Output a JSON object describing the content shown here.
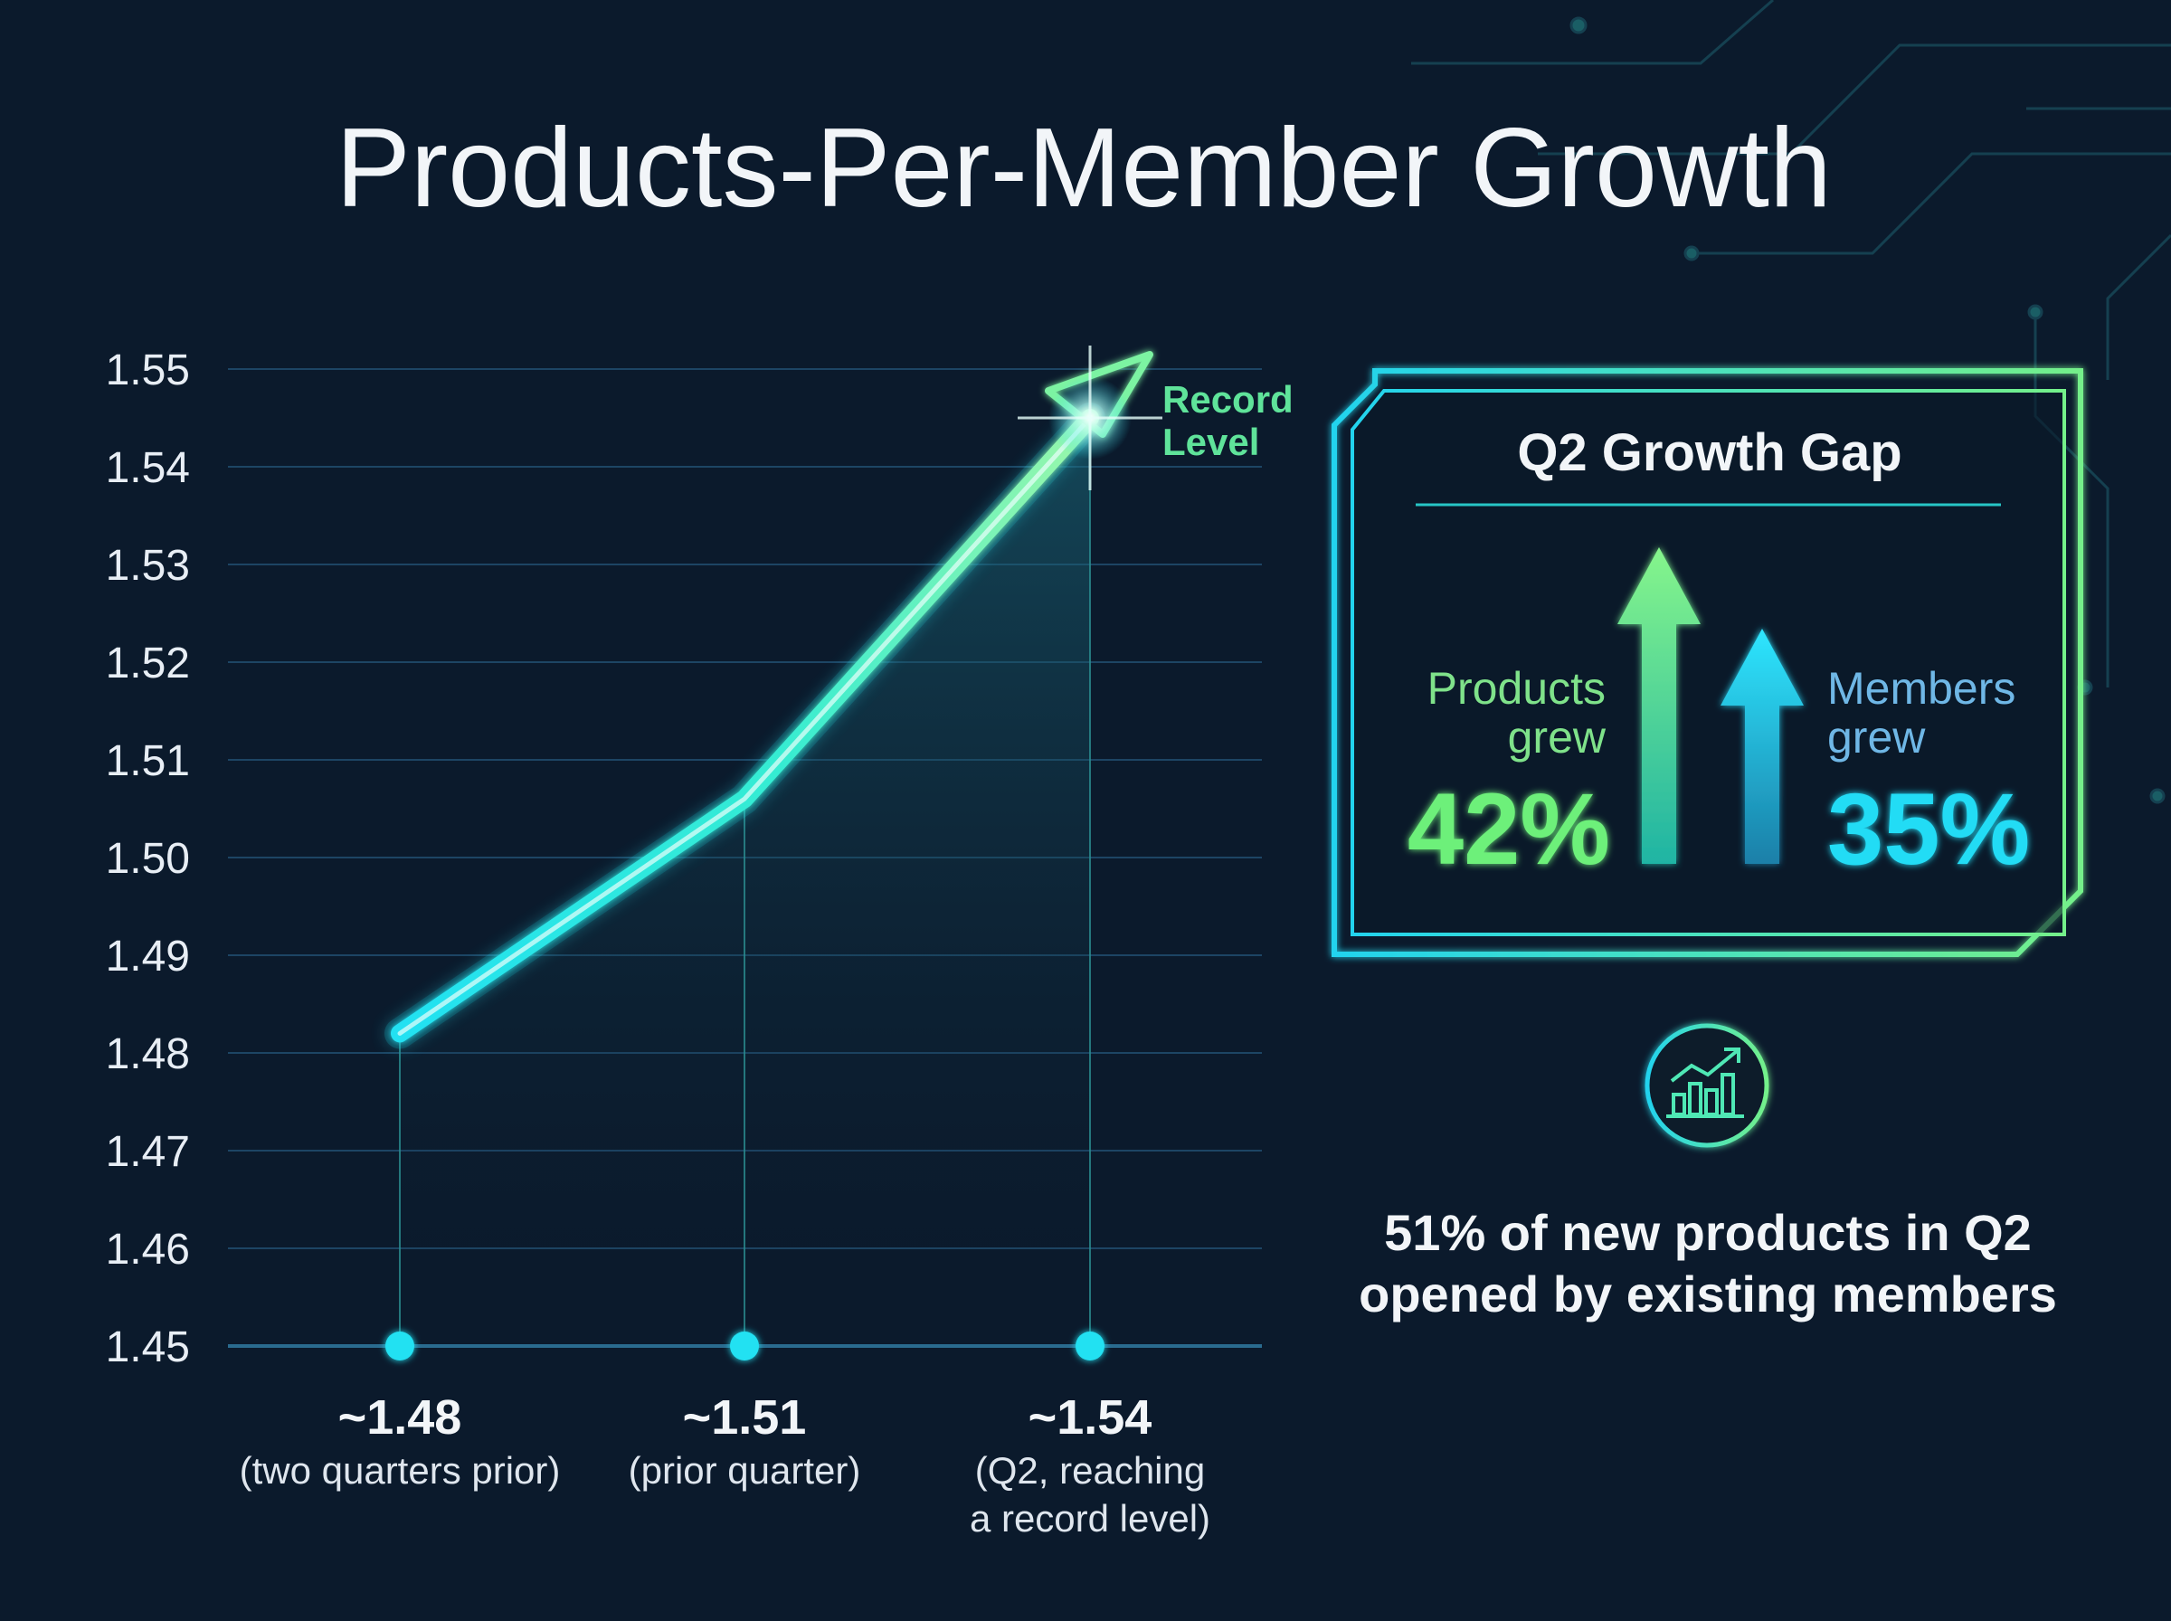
{
  "title": "Products-Per-Member Growth",
  "colors": {
    "background": "#0b1a2c",
    "cyan": "#22e1f2",
    "green": "#6df07a",
    "teal_line": "#27d7d7",
    "grid": "#1f4a6b",
    "axis_text": "#e8eef5"
  },
  "chart_data": {
    "type": "line",
    "title": "Products-Per-Member Growth",
    "xlabel": "",
    "ylabel": "",
    "ylim": [
      1.45,
      1.55
    ],
    "yticks": [
      "1.55",
      "1.54",
      "1.53",
      "1.52",
      "1.51",
      "1.50",
      "1.49",
      "1.48",
      "1.47",
      "1.46",
      "1.45"
    ],
    "grid": true,
    "series": [
      {
        "values": [
          1.482,
          1.506,
          1.545
        ]
      }
    ],
    "points": [
      {
        "value_label": "~1.48",
        "caption_lines": [
          "(two quarters prior)"
        ]
      },
      {
        "value_label": "~1.51",
        "caption_lines": [
          "(prior quarter)"
        ]
      },
      {
        "value_label": "~1.54",
        "caption_lines": [
          "(Q2, reaching",
          "a record level)"
        ]
      }
    ],
    "annotation": {
      "lines": [
        "Record",
        "Level"
      ],
      "icon": "arrow-head-icon"
    }
  },
  "growth_panel": {
    "title": "Q2 Growth Gap",
    "products": {
      "label_lines": [
        "Products",
        "grew"
      ],
      "value": "42%",
      "fraction": 0.42,
      "icon": "up-arrow-icon"
    },
    "members": {
      "label_lines": [
        "Members",
        "grew"
      ],
      "value": "35%",
      "fraction": 0.35,
      "icon": "up-arrow-icon"
    }
  },
  "callout": {
    "icon": "bar-chart-trend-icon",
    "lines": [
      "51% of new products in Q2",
      "opened by existing members"
    ]
  }
}
